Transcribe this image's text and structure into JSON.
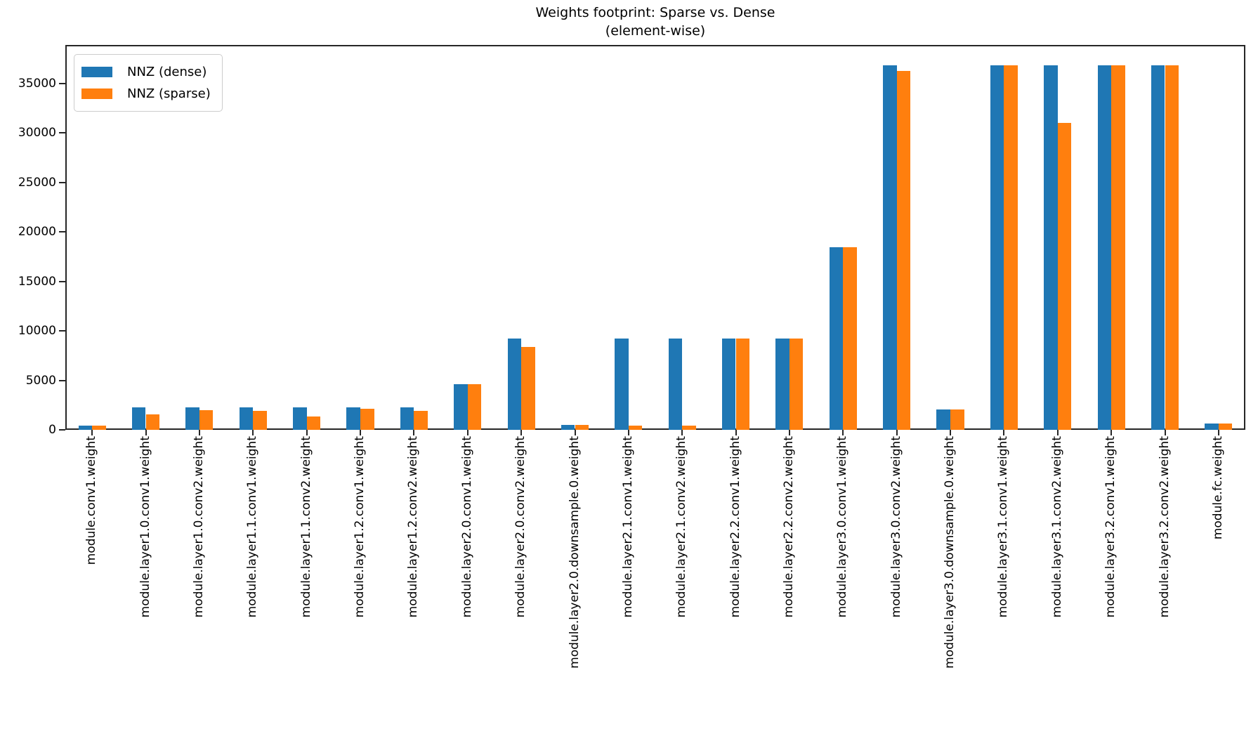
{
  "title": {
    "line1": "Weights footprint: Sparse vs. Dense",
    "line2": "(element-wise)"
  },
  "colors": {
    "dense": "#1f77b4",
    "sparse": "#ff7f0e",
    "spine": "#262626",
    "background": "#ffffff",
    "legend_border": "#cccccc"
  },
  "chart_data": {
    "type": "bar",
    "title": "Weights footprint: Sparse vs. Dense\n(element-wise)",
    "xlabel": "",
    "ylabel": "",
    "grid": false,
    "legend_position": "upper left",
    "ylim": [
      0,
      38900
    ],
    "yticks": [
      0,
      5000,
      10000,
      15000,
      20000,
      25000,
      30000,
      35000
    ],
    "categories": [
      "module.conv1.weight",
      "module.layer1.0.conv1.weight",
      "module.layer1.0.conv2.weight",
      "module.layer1.1.conv1.weight",
      "module.layer1.1.conv2.weight",
      "module.layer1.2.conv1.weight",
      "module.layer1.2.conv2.weight",
      "module.layer2.0.conv1.weight",
      "module.layer2.0.conv2.weight",
      "module.layer2.0.downsample.0.weight",
      "module.layer2.1.conv1.weight",
      "module.layer2.1.conv2.weight",
      "module.layer2.2.conv1.weight",
      "module.layer2.2.conv2.weight",
      "module.layer3.0.conv1.weight",
      "module.layer3.0.conv2.weight",
      "module.layer3.0.downsample.0.weight",
      "module.layer3.1.conv1.weight",
      "module.layer3.1.conv2.weight",
      "module.layer3.2.conv1.weight",
      "module.layer3.2.conv2.weight",
      "module.fc.weight"
    ],
    "series": [
      {
        "name": "NNZ (dense)",
        "color": "#1f77b4",
        "values": [
          432,
          2304,
          2304,
          2304,
          2304,
          2304,
          2304,
          4608,
          9216,
          512,
          9216,
          9216,
          9216,
          9216,
          18432,
          36864,
          2048,
          36864,
          36864,
          36864,
          36864,
          640
        ]
      },
      {
        "name": "NNZ (sparse)",
        "color": "#ff7f0e",
        "values": [
          432,
          1600,
          2000,
          1900,
          1350,
          2150,
          1900,
          4608,
          8400,
          512,
          400,
          450,
          9216,
          9216,
          18432,
          36300,
          2048,
          36864,
          31000,
          36864,
          36864,
          640
        ]
      }
    ]
  }
}
